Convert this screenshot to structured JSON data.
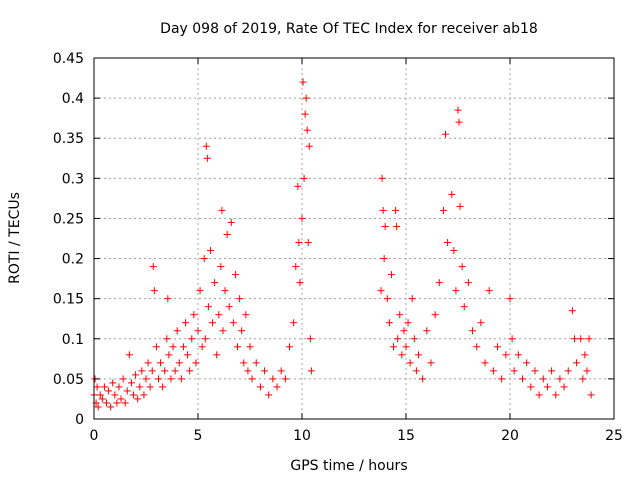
{
  "chart_data": {
    "type": "scatter",
    "title": "Day 098 of 2019, Rate Of TEC Index for receiver ab18",
    "xlabel": "GPS time / hours",
    "ylabel": "ROTI / TECUs",
    "xlim": [
      0,
      25
    ],
    "ylim": [
      0,
      0.45
    ],
    "xticks": [
      0,
      5,
      10,
      15,
      20,
      25
    ],
    "yticks": [
      0,
      0.05,
      0.1,
      0.15,
      0.2,
      0.25,
      0.3,
      0.35,
      0.4,
      0.45
    ],
    "xtick_labels": [
      "0",
      "5",
      "10",
      "15",
      "20",
      "25"
    ],
    "ytick_labels": [
      "0",
      "0.05",
      "0.1",
      "0.15",
      "0.2",
      "0.25",
      "0.3",
      "0.35",
      "0.4",
      "0.45"
    ],
    "grid": true,
    "marker": "+",
    "color": "#ff0000",
    "series": [
      {
        "name": "ROTI",
        "points": [
          [
            0.0,
            0.03
          ],
          [
            0.05,
            0.05
          ],
          [
            0.1,
            0.02
          ],
          [
            0.15,
            0.04
          ],
          [
            0.2,
            0.015
          ],
          [
            0.3,
            0.03
          ],
          [
            0.4,
            0.025
          ],
          [
            0.5,
            0.04
          ],
          [
            0.6,
            0.02
          ],
          [
            0.7,
            0.035
          ],
          [
            0.8,
            0.015
          ],
          [
            0.9,
            0.045
          ],
          [
            1.0,
            0.03
          ],
          [
            1.1,
            0.02
          ],
          [
            1.2,
            0.04
          ],
          [
            1.3,
            0.025
          ],
          [
            1.4,
            0.05
          ],
          [
            1.5,
            0.02
          ],
          [
            1.6,
            0.035
          ],
          [
            1.7,
            0.08
          ],
          [
            1.8,
            0.045
          ],
          [
            1.9,
            0.03
          ],
          [
            2.0,
            0.055
          ],
          [
            2.1,
            0.025
          ],
          [
            2.2,
            0.04
          ],
          [
            2.3,
            0.06
          ],
          [
            2.4,
            0.03
          ],
          [
            2.5,
            0.05
          ],
          [
            2.6,
            0.07
          ],
          [
            2.7,
            0.04
          ],
          [
            2.8,
            0.06
          ],
          [
            2.85,
            0.19
          ],
          [
            2.9,
            0.16
          ],
          [
            3.0,
            0.09
          ],
          [
            3.1,
            0.05
          ],
          [
            3.2,
            0.07
          ],
          [
            3.3,
            0.04
          ],
          [
            3.4,
            0.06
          ],
          [
            3.5,
            0.1
          ],
          [
            3.55,
            0.15
          ],
          [
            3.6,
            0.08
          ],
          [
            3.7,
            0.05
          ],
          [
            3.8,
            0.09
          ],
          [
            3.9,
            0.06
          ],
          [
            4.0,
            0.11
          ],
          [
            4.1,
            0.07
          ],
          [
            4.2,
            0.05
          ],
          [
            4.3,
            0.09
          ],
          [
            4.4,
            0.12
          ],
          [
            4.5,
            0.08
          ],
          [
            4.6,
            0.06
          ],
          [
            4.7,
            0.1
          ],
          [
            4.8,
            0.13
          ],
          [
            4.9,
            0.07
          ],
          [
            5.0,
            0.11
          ],
          [
            5.1,
            0.16
          ],
          [
            5.2,
            0.09
          ],
          [
            5.3,
            0.2
          ],
          [
            5.35,
            0.1
          ],
          [
            5.4,
            0.34
          ],
          [
            5.45,
            0.325
          ],
          [
            5.5,
            0.14
          ],
          [
            5.6,
            0.21
          ],
          [
            5.7,
            0.12
          ],
          [
            5.8,
            0.17
          ],
          [
            5.9,
            0.08
          ],
          [
            6.0,
            0.13
          ],
          [
            6.1,
            0.19
          ],
          [
            6.15,
            0.26
          ],
          [
            6.2,
            0.11
          ],
          [
            6.3,
            0.16
          ],
          [
            6.4,
            0.23
          ],
          [
            6.5,
            0.14
          ],
          [
            6.6,
            0.245
          ],
          [
            6.7,
            0.12
          ],
          [
            6.8,
            0.18
          ],
          [
            6.9,
            0.09
          ],
          [
            7.0,
            0.15
          ],
          [
            7.1,
            0.11
          ],
          [
            7.2,
            0.07
          ],
          [
            7.3,
            0.13
          ],
          [
            7.4,
            0.06
          ],
          [
            7.5,
            0.09
          ],
          [
            7.6,
            0.05
          ],
          [
            7.8,
            0.07
          ],
          [
            8.0,
            0.04
          ],
          [
            8.2,
            0.06
          ],
          [
            8.4,
            0.03
          ],
          [
            8.6,
            0.05
          ],
          [
            8.8,
            0.04
          ],
          [
            9.0,
            0.06
          ],
          [
            9.2,
            0.05
          ],
          [
            9.4,
            0.09
          ],
          [
            9.6,
            0.12
          ],
          [
            9.7,
            0.19
          ],
          [
            9.8,
            0.29
          ],
          [
            9.85,
            0.22
          ],
          [
            9.9,
            0.17
          ],
          [
            10.0,
            0.25
          ],
          [
            10.05,
            0.42
          ],
          [
            10.1,
            0.3
          ],
          [
            10.15,
            0.38
          ],
          [
            10.2,
            0.4
          ],
          [
            10.25,
            0.36
          ],
          [
            10.3,
            0.22
          ],
          [
            10.35,
            0.34
          ],
          [
            10.4,
            0.1
          ],
          [
            10.45,
            0.06
          ],
          [
            13.8,
            0.16
          ],
          [
            13.85,
            0.3
          ],
          [
            13.9,
            0.26
          ],
          [
            13.95,
            0.2
          ],
          [
            14.0,
            0.24
          ],
          [
            14.1,
            0.15
          ],
          [
            14.2,
            0.12
          ],
          [
            14.3,
            0.18
          ],
          [
            14.4,
            0.09
          ],
          [
            14.5,
            0.26
          ],
          [
            14.55,
            0.24
          ],
          [
            14.6,
            0.1
          ],
          [
            14.7,
            0.13
          ],
          [
            14.8,
            0.08
          ],
          [
            14.9,
            0.11
          ],
          [
            15.0,
            0.09
          ],
          [
            15.1,
            0.12
          ],
          [
            15.2,
            0.07
          ],
          [
            15.3,
            0.15
          ],
          [
            15.4,
            0.1
          ],
          [
            15.5,
            0.06
          ],
          [
            15.6,
            0.08
          ],
          [
            15.8,
            0.05
          ],
          [
            16.0,
            0.11
          ],
          [
            16.2,
            0.07
          ],
          [
            16.4,
            0.13
          ],
          [
            16.6,
            0.17
          ],
          [
            16.8,
            0.26
          ],
          [
            16.9,
            0.355
          ],
          [
            17.0,
            0.22
          ],
          [
            17.2,
            0.28
          ],
          [
            17.3,
            0.21
          ],
          [
            17.4,
            0.16
          ],
          [
            17.5,
            0.385
          ],
          [
            17.55,
            0.37
          ],
          [
            17.6,
            0.265
          ],
          [
            17.7,
            0.19
          ],
          [
            17.8,
            0.14
          ],
          [
            18.0,
            0.17
          ],
          [
            18.2,
            0.11
          ],
          [
            18.4,
            0.09
          ],
          [
            18.6,
            0.12
          ],
          [
            18.8,
            0.07
          ],
          [
            19.0,
            0.16
          ],
          [
            19.2,
            0.06
          ],
          [
            19.4,
            0.09
          ],
          [
            19.6,
            0.05
          ],
          [
            19.8,
            0.08
          ],
          [
            20.0,
            0.15
          ],
          [
            20.1,
            0.1
          ],
          [
            20.2,
            0.06
          ],
          [
            20.4,
            0.08
          ],
          [
            20.6,
            0.05
          ],
          [
            20.8,
            0.07
          ],
          [
            21.0,
            0.04
          ],
          [
            21.2,
            0.06
          ],
          [
            21.4,
            0.03
          ],
          [
            21.6,
            0.05
          ],
          [
            21.8,
            0.04
          ],
          [
            22.0,
            0.06
          ],
          [
            22.2,
            0.03
          ],
          [
            22.4,
            0.05
          ],
          [
            22.6,
            0.04
          ],
          [
            22.8,
            0.06
          ],
          [
            23.0,
            0.135
          ],
          [
            23.1,
            0.1
          ],
          [
            23.2,
            0.07
          ],
          [
            23.4,
            0.1
          ],
          [
            23.5,
            0.05
          ],
          [
            23.6,
            0.08
          ],
          [
            23.7,
            0.06
          ],
          [
            23.8,
            0.1
          ],
          [
            23.9,
            0.03
          ]
        ]
      }
    ]
  }
}
